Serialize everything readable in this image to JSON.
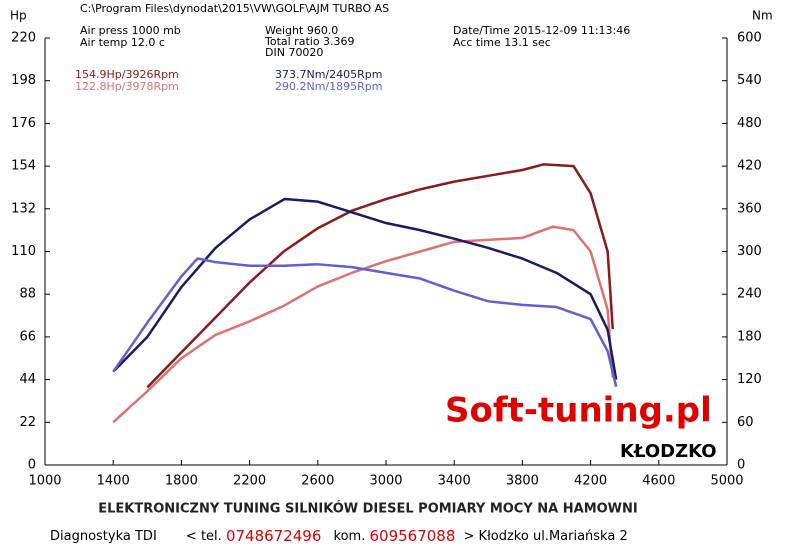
{
  "chart_data": {
    "type": "line",
    "file": "C:\\Program Files\\dynodat\\2015\\VW\\GOLF\\AJM TURBO AS",
    "info": [
      "Air press  1000 mb",
      "Air temp  12.0 c",
      "Weight  960.0",
      "Total ratio 3.369",
      "DIN 70020",
      "Date/Time  2015-12-09 11:13:46",
      "Acc time  13.1 sec"
    ],
    "ylabel": "Hp",
    "y2label": "Nm",
    "xlim": [
      1000,
      5000
    ],
    "xticks": [
      1000,
      1400,
      1800,
      2200,
      2600,
      3000,
      3400,
      3800,
      4200,
      4600,
      5000
    ],
    "ylim": [
      0,
      220
    ],
    "yticks": [
      0,
      22,
      44,
      66,
      88,
      110,
      132,
      154,
      176,
      198,
      220
    ],
    "y2lim": [
      0,
      600
    ],
    "y2ticks": [
      0,
      60,
      120,
      180,
      240,
      300,
      360,
      420,
      480,
      540,
      600
    ],
    "series": [
      {
        "name": "154.9Hp/3926Rpm",
        "color": "#8b1a1a",
        "axis": "y",
        "x": [
          1600,
          1800,
          2000,
          2200,
          2400,
          2600,
          2800,
          3000,
          3200,
          3400,
          3600,
          3800,
          3926,
          4100,
          4200,
          4300,
          4330
        ],
        "values": [
          40,
          58,
          76,
          94,
          110,
          122,
          131,
          137,
          142,
          146,
          149,
          152,
          154.9,
          154,
          140,
          110,
          70
        ]
      },
      {
        "name": "122.8Hp/3978Rpm",
        "color": "#e07070",
        "axis": "y",
        "x": [
          1400,
          1600,
          1800,
          2000,
          2200,
          2400,
          2600,
          2800,
          3000,
          3200,
          3400,
          3600,
          3800,
          3978,
          4100,
          4200,
          4300,
          4330
        ],
        "values": [
          22,
          38,
          55,
          67,
          74,
          82,
          92,
          99,
          105,
          110,
          115,
          116,
          117,
          122.8,
          121,
          110,
          80,
          45
        ]
      },
      {
        "name": "373.7Nm/2405Rpm",
        "color": "#1a1a66",
        "axis": "y2",
        "x": [
          1400,
          1600,
          1800,
          2000,
          2200,
          2405,
          2600,
          2800,
          3000,
          3200,
          3400,
          3600,
          3800,
          4000,
          4200,
          4300,
          4350
        ],
        "values": [
          131,
          180,
          250,
          305,
          345,
          373.7,
          370,
          355,
          340,
          330,
          318,
          305,
          290,
          270,
          240,
          190,
          120
        ]
      },
      {
        "name": "290.2Nm/1895Rpm",
        "color": "#6060d0",
        "axis": "y2",
        "x": [
          1400,
          1600,
          1800,
          1895,
          2000,
          2200,
          2400,
          2600,
          2800,
          3000,
          3200,
          3400,
          3600,
          3800,
          4000,
          4200,
          4300,
          4350
        ],
        "values": [
          131,
          200,
          265,
          290.2,
          285,
          280,
          280,
          282,
          278,
          270,
          262,
          245,
          230,
          225,
          222,
          205,
          160,
          110
        ]
      }
    ],
    "watermark": "Soft-tuning.pl",
    "city": "KŁODZKO",
    "footer": "ELEKTRONICZNY  TUNING  SILNIKÓW  DIESEL   POMIARY  MOCY  NA  HAMOWNI",
    "footer2": [
      "Diagnostyka TDI",
      "< tel.",
      "0748672496",
      "kom.",
      "609567088",
      "> Kłodzko ul.Mariańska 2"
    ]
  }
}
